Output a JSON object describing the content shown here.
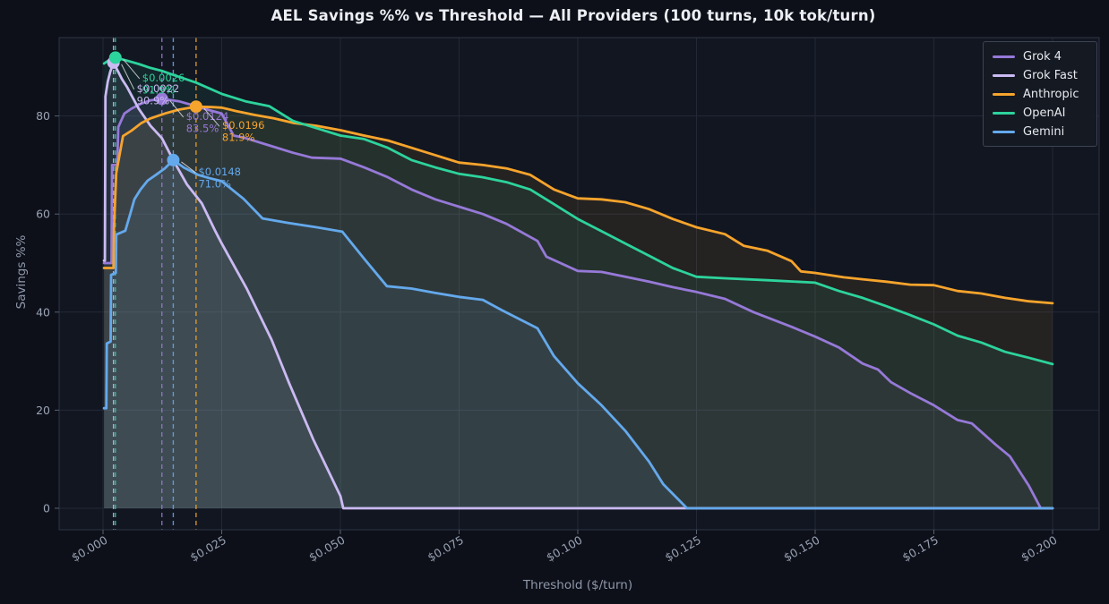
{
  "title": "AEL Savings %% vs Threshold — All Providers (100 turns, 10k tok/turn)",
  "chart_data": {
    "type": "line",
    "title": "AEL Savings %% vs Threshold — All Providers (100 turns, 10k tok/turn)",
    "xlabel": "Threshold ($/turn)",
    "ylabel": "Savings %%",
    "grid": true,
    "legend_position": "upper right",
    "xlim": [
      -0.00925,
      0.2098
    ],
    "ylim": [
      -4.4,
      96.0
    ],
    "x_ticks": [
      {
        "v": 0.0,
        "label": "$0.000"
      },
      {
        "v": 0.025,
        "label": "$0.025"
      },
      {
        "v": 0.05,
        "label": "$0.050"
      },
      {
        "v": 0.075,
        "label": "$0.075"
      },
      {
        "v": 0.1,
        "label": "$0.100"
      },
      {
        "v": 0.125,
        "label": "$0.125"
      },
      {
        "v": 0.15,
        "label": "$0.150"
      },
      {
        "v": 0.175,
        "label": "$0.175"
      },
      {
        "v": 0.2,
        "label": "$0.200"
      }
    ],
    "y_ticks": [
      {
        "v": 0,
        "label": "0"
      },
      {
        "v": 20,
        "label": "20"
      },
      {
        "v": 40,
        "label": "40"
      },
      {
        "v": 60,
        "label": "60"
      },
      {
        "v": 80,
        "label": "80"
      }
    ],
    "series": [
      {
        "name": "Grok 4",
        "color": "#9679d8",
        "peak": {
          "x": 0.0124,
          "y": 83.5,
          "label_cost": "$0.0124",
          "label_pct": "83.5%"
        },
        "points": [
          [
            0.0002,
            50
          ],
          [
            0.0018,
            50
          ],
          [
            0.0019,
            70
          ],
          [
            0.003,
            70
          ],
          [
            0.0032,
            77.7
          ],
          [
            0.0045,
            80.5
          ],
          [
            0.006,
            81.5
          ],
          [
            0.008,
            82.5
          ],
          [
            0.01,
            83.2
          ],
          [
            0.0124,
            83.5
          ],
          [
            0.016,
            83
          ],
          [
            0.0196,
            82
          ],
          [
            0.022,
            81.3
          ],
          [
            0.025,
            80.5
          ],
          [
            0.0275,
            76
          ],
          [
            0.03,
            75.5
          ],
          [
            0.035,
            74
          ],
          [
            0.04,
            72.5
          ],
          [
            0.044,
            71.5
          ],
          [
            0.05,
            71.3
          ],
          [
            0.055,
            69.5
          ],
          [
            0.06,
            67.5
          ],
          [
            0.065,
            65
          ],
          [
            0.07,
            63
          ],
          [
            0.075,
            61.5
          ],
          [
            0.08,
            60
          ],
          [
            0.085,
            58
          ],
          [
            0.0915,
            54.5
          ],
          [
            0.0934,
            51.3
          ],
          [
            0.1,
            48.4
          ],
          [
            0.105,
            48.2
          ],
          [
            0.11,
            47.2
          ],
          [
            0.115,
            46.2
          ],
          [
            0.12,
            45.1
          ],
          [
            0.125,
            44.1
          ],
          [
            0.131,
            42.7
          ],
          [
            0.137,
            40
          ],
          [
            0.145,
            37
          ],
          [
            0.15,
            35
          ],
          [
            0.155,
            32.8
          ],
          [
            0.16,
            29.5
          ],
          [
            0.1632,
            28.3
          ],
          [
            0.166,
            25.7
          ],
          [
            0.17,
            23.5
          ],
          [
            0.175,
            21
          ],
          [
            0.18,
            18
          ],
          [
            0.183,
            17.3
          ],
          [
            0.188,
            13
          ],
          [
            0.191,
            10.6
          ],
          [
            0.195,
            4.6
          ],
          [
            0.1975,
            0
          ],
          [
            0.2,
            0
          ]
        ]
      },
      {
        "name": "Grok Fast",
        "color": "#cbbaf2",
        "peak": {
          "x": 0.0022,
          "y": 90.9,
          "label_cost": "$0.0022",
          "label_pct": "90.9%"
        },
        "points": [
          [
            0.0002,
            50.5
          ],
          [
            0.0004,
            50.5
          ],
          [
            0.0005,
            84
          ],
          [
            0.001,
            87
          ],
          [
            0.0015,
            89
          ],
          [
            0.0022,
            90.9
          ],
          [
            0.004,
            87.5
          ],
          [
            0.005,
            86
          ],
          [
            0.0075,
            81.5
          ],
          [
            0.01,
            78
          ],
          [
            0.0124,
            75.5
          ],
          [
            0.0148,
            71
          ],
          [
            0.0177,
            66
          ],
          [
            0.0208,
            62.2
          ],
          [
            0.0236,
            56.6
          ],
          [
            0.025,
            54
          ],
          [
            0.0274,
            49.8
          ],
          [
            0.0302,
            44.9
          ],
          [
            0.0355,
            34.4
          ],
          [
            0.0392,
            25.5
          ],
          [
            0.0443,
            14
          ],
          [
            0.05,
            2.5
          ],
          [
            0.0506,
            0
          ],
          [
            0.2,
            0
          ]
        ]
      },
      {
        "name": "Anthropic",
        "color": "#f6a42c",
        "peak": {
          "x": 0.0196,
          "y": 81.9,
          "label_cost": "$0.0196",
          "label_pct": "81.9%"
        },
        "points": [
          [
            0.0002,
            49
          ],
          [
            0.0022,
            49
          ],
          [
            0.0023,
            57
          ],
          [
            0.0028,
            68.4
          ],
          [
            0.0042,
            75.9
          ],
          [
            0.006,
            77
          ],
          [
            0.008,
            78.5
          ],
          [
            0.01,
            79.5
          ],
          [
            0.013,
            80.5
          ],
          [
            0.016,
            81.3
          ],
          [
            0.0196,
            81.9
          ],
          [
            0.023,
            81.8
          ],
          [
            0.025,
            81.7
          ],
          [
            0.028,
            81
          ],
          [
            0.032,
            80.2
          ],
          [
            0.036,
            79.5
          ],
          [
            0.04,
            78.6
          ],
          [
            0.045,
            78
          ],
          [
            0.05,
            77.1
          ],
          [
            0.055,
            76
          ],
          [
            0.06,
            75
          ],
          [
            0.065,
            73.5
          ],
          [
            0.07,
            72
          ],
          [
            0.075,
            70.5
          ],
          [
            0.08,
            70
          ],
          [
            0.085,
            69.3
          ],
          [
            0.09,
            68
          ],
          [
            0.095,
            65
          ],
          [
            0.1,
            63.2
          ],
          [
            0.105,
            63
          ],
          [
            0.11,
            62.4
          ],
          [
            0.115,
            61
          ],
          [
            0.12,
            59
          ],
          [
            0.125,
            57.3
          ],
          [
            0.131,
            55.9
          ],
          [
            0.135,
            53.5
          ],
          [
            0.14,
            52.5
          ],
          [
            0.145,
            50.4
          ],
          [
            0.147,
            48.3
          ],
          [
            0.15,
            48
          ],
          [
            0.156,
            47.1
          ],
          [
            0.16,
            46.7
          ],
          [
            0.165,
            46.2
          ],
          [
            0.17,
            45.6
          ],
          [
            0.175,
            45.5
          ],
          [
            0.18,
            44.3
          ],
          [
            0.185,
            43.8
          ],
          [
            0.19,
            42.9
          ],
          [
            0.195,
            42.2
          ],
          [
            0.2,
            41.8
          ]
        ]
      },
      {
        "name": "OpenAI",
        "color": "#2dd39c",
        "peak": {
          "x": 0.0026,
          "y": 91.9,
          "label_cost": "$0.0026",
          "label_pct": "91.9%"
        },
        "points": [
          [
            0.0002,
            90.7
          ],
          [
            0.001,
            91.2
          ],
          [
            0.0026,
            91.9
          ],
          [
            0.005,
            91.3
          ],
          [
            0.0075,
            90.6
          ],
          [
            0.01,
            89.8
          ],
          [
            0.0124,
            89.2
          ],
          [
            0.015,
            88.3
          ],
          [
            0.0196,
            86.8
          ],
          [
            0.025,
            84.5
          ],
          [
            0.03,
            83
          ],
          [
            0.035,
            82
          ],
          [
            0.04,
            79
          ],
          [
            0.045,
            77.5
          ],
          [
            0.05,
            76
          ],
          [
            0.055,
            75.3
          ],
          [
            0.06,
            73.5
          ],
          [
            0.065,
            71
          ],
          [
            0.07,
            69.5
          ],
          [
            0.075,
            68.2
          ],
          [
            0.08,
            67.5
          ],
          [
            0.085,
            66.5
          ],
          [
            0.09,
            65
          ],
          [
            0.095,
            62
          ],
          [
            0.1,
            59
          ],
          [
            0.105,
            56.5
          ],
          [
            0.11,
            54
          ],
          [
            0.115,
            51.5
          ],
          [
            0.12,
            49
          ],
          [
            0.125,
            47.2
          ],
          [
            0.131,
            46.9
          ],
          [
            0.14,
            46.5
          ],
          [
            0.15,
            46
          ],
          [
            0.155,
            44.3
          ],
          [
            0.16,
            42.9
          ],
          [
            0.165,
            41.2
          ],
          [
            0.17,
            39.4
          ],
          [
            0.175,
            37.5
          ],
          [
            0.18,
            35.2
          ],
          [
            0.185,
            33.8
          ],
          [
            0.19,
            31.9
          ],
          [
            0.195,
            30.7
          ],
          [
            0.2,
            29.4
          ]
        ]
      },
      {
        "name": "Gemini",
        "color": "#64a9ec",
        "peak": {
          "x": 0.0148,
          "y": 71.0,
          "label_cost": "$0.0148",
          "label_pct": "71.0%"
        },
        "points": [
          [
            0.0002,
            20.4
          ],
          [
            0.0007,
            20.4
          ],
          [
            0.0008,
            33.6
          ],
          [
            0.0016,
            34
          ],
          [
            0.0017,
            47.6
          ],
          [
            0.0027,
            48
          ],
          [
            0.0028,
            55.8
          ],
          [
            0.0047,
            56.6
          ],
          [
            0.0057,
            59.9
          ],
          [
            0.0066,
            63
          ],
          [
            0.0079,
            65
          ],
          [
            0.0094,
            66.8
          ],
          [
            0.0113,
            68.1
          ],
          [
            0.013,
            69.3
          ],
          [
            0.0148,
            71
          ],
          [
            0.017,
            69.5
          ],
          [
            0.02,
            68
          ],
          [
            0.0225,
            67.3
          ],
          [
            0.025,
            66.7
          ],
          [
            0.0296,
            63.1
          ],
          [
            0.0336,
            59.1
          ],
          [
            0.039,
            58.2
          ],
          [
            0.045,
            57.3
          ],
          [
            0.0504,
            56.4
          ],
          [
            0.055,
            50.9
          ],
          [
            0.0598,
            45.3
          ],
          [
            0.065,
            44.8
          ],
          [
            0.07,
            43.9
          ],
          [
            0.075,
            43.1
          ],
          [
            0.08,
            42.5
          ],
          [
            0.084,
            40.4
          ],
          [
            0.0915,
            36.7
          ],
          [
            0.095,
            31
          ],
          [
            0.1,
            25.5
          ],
          [
            0.105,
            21
          ],
          [
            0.11,
            15.8
          ],
          [
            0.115,
            9.5
          ],
          [
            0.118,
            4.9
          ],
          [
            0.123,
            0
          ],
          [
            0.2,
            0
          ]
        ]
      }
    ],
    "colors": {
      "figure_bg": "#0d1019",
      "axes_bg": "#121621",
      "grid": "#222838",
      "spine": "#2e3545",
      "tick_text": "#9aa3b5",
      "axis_label_text": "#8f98ab",
      "title_text": "#eceef3",
      "annotation_arrow": "#e8e8e8"
    }
  }
}
